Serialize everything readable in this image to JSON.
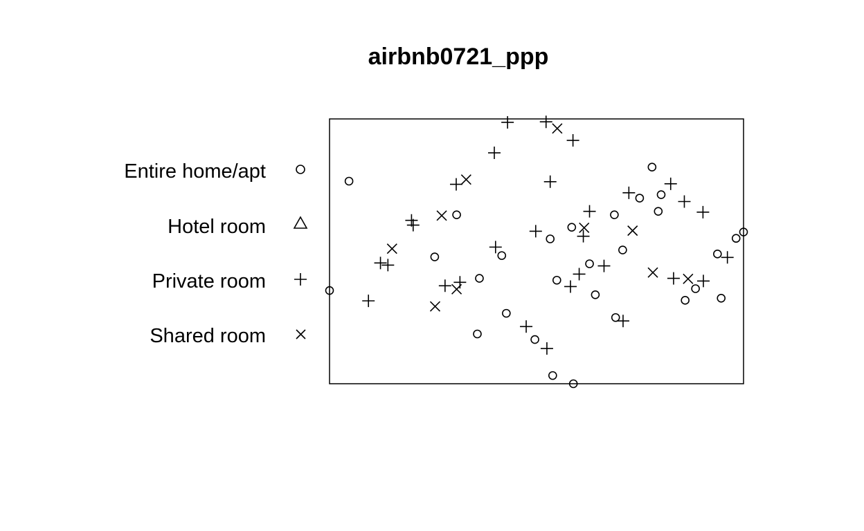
{
  "chart_data": {
    "type": "scatter",
    "title": "airbnb0721_ppp",
    "xlabel": "",
    "ylabel": "",
    "axes_shown": false,
    "grid": false,
    "legend_position": "left",
    "marks": {
      "Entire home/apt": "circle",
      "Hotel room": "triangle",
      "Private room": "plus",
      "Shared room": "x"
    },
    "xlim": [
      0,
      100
    ],
    "ylim": [
      0,
      100
    ],
    "series": [
      {
        "name": "Entire home/apt",
        "symbol": "circle",
        "points": [
          [
            4.7,
            76.5
          ],
          [
            0,
            35.2
          ],
          [
            58.9,
            0
          ],
          [
            77.9,
            81.8
          ],
          [
            80.1,
            71.4
          ],
          [
            74.9,
            70.1
          ],
          [
            68.8,
            63.8
          ],
          [
            58.5,
            59.1
          ],
          [
            53.3,
            54.7
          ],
          [
            41.6,
            48.4
          ],
          [
            36.2,
            39.8
          ],
          [
            42.7,
            26.6
          ],
          [
            49.6,
            16.7
          ],
          [
            53.9,
            3.1
          ],
          [
            62.8,
            45.3
          ],
          [
            69.1,
            25
          ],
          [
            85.9,
            31.5
          ],
          [
            94.6,
            32.3
          ],
          [
            98.2,
            54.9
          ],
          [
            100,
            57.3
          ],
          [
            93.7,
            49
          ],
          [
            88.4,
            35.9
          ],
          [
            30.7,
            63.8
          ],
          [
            25.4,
            47.9
          ],
          [
            35.7,
            18.8
          ],
          [
            54.9,
            39.1
          ],
          [
            64.2,
            33.6
          ],
          [
            79.4,
            65.1
          ],
          [
            70.8,
            50.5
          ]
        ]
      },
      {
        "name": "Hotel room",
        "symbol": "triangle",
        "points": []
      },
      {
        "name": "Private room",
        "symbol": "plus",
        "points": [
          [
            43,
            98.7
          ],
          [
            52.3,
            98.9
          ],
          [
            58.8,
            91.9
          ],
          [
            39.8,
            87.2
          ],
          [
            53.3,
            76.3
          ],
          [
            30.6,
            75.3
          ],
          [
            19.8,
            61.7
          ],
          [
            12.3,
            45.6
          ],
          [
            9.4,
            31.3
          ],
          [
            20.2,
            59.9
          ],
          [
            31.5,
            38.3
          ],
          [
            49.8,
            57.6
          ],
          [
            47.5,
            21.6
          ],
          [
            52.5,
            13.3
          ],
          [
            60.3,
            41.4
          ],
          [
            70.9,
            23.7
          ],
          [
            83.1,
            39.8
          ],
          [
            90.3,
            38.8
          ],
          [
            96.1,
            47.7
          ],
          [
            90.2,
            64.8
          ],
          [
            85.7,
            68.8
          ],
          [
            82.4,
            75.5
          ],
          [
            72.3,
            72.1
          ],
          [
            62.8,
            65.1
          ],
          [
            61.3,
            55.7
          ],
          [
            14.1,
            44.8
          ],
          [
            27.9,
            37
          ],
          [
            40.1,
            51.6
          ],
          [
            66.3,
            44.5
          ],
          [
            58.2,
            36.7
          ]
        ]
      },
      {
        "name": "Shared room",
        "symbol": "x",
        "points": [
          [
            33,
            77.1
          ],
          [
            27.1,
            63.5
          ],
          [
            25.5,
            29.2
          ],
          [
            30.7,
            35.7
          ],
          [
            78.1,
            42
          ],
          [
            86.6,
            39.6
          ],
          [
            55,
            96.4
          ],
          [
            73.2,
            57.8
          ],
          [
            61.5,
            58.9
          ],
          [
            15.1,
            51
          ]
        ]
      }
    ]
  }
}
